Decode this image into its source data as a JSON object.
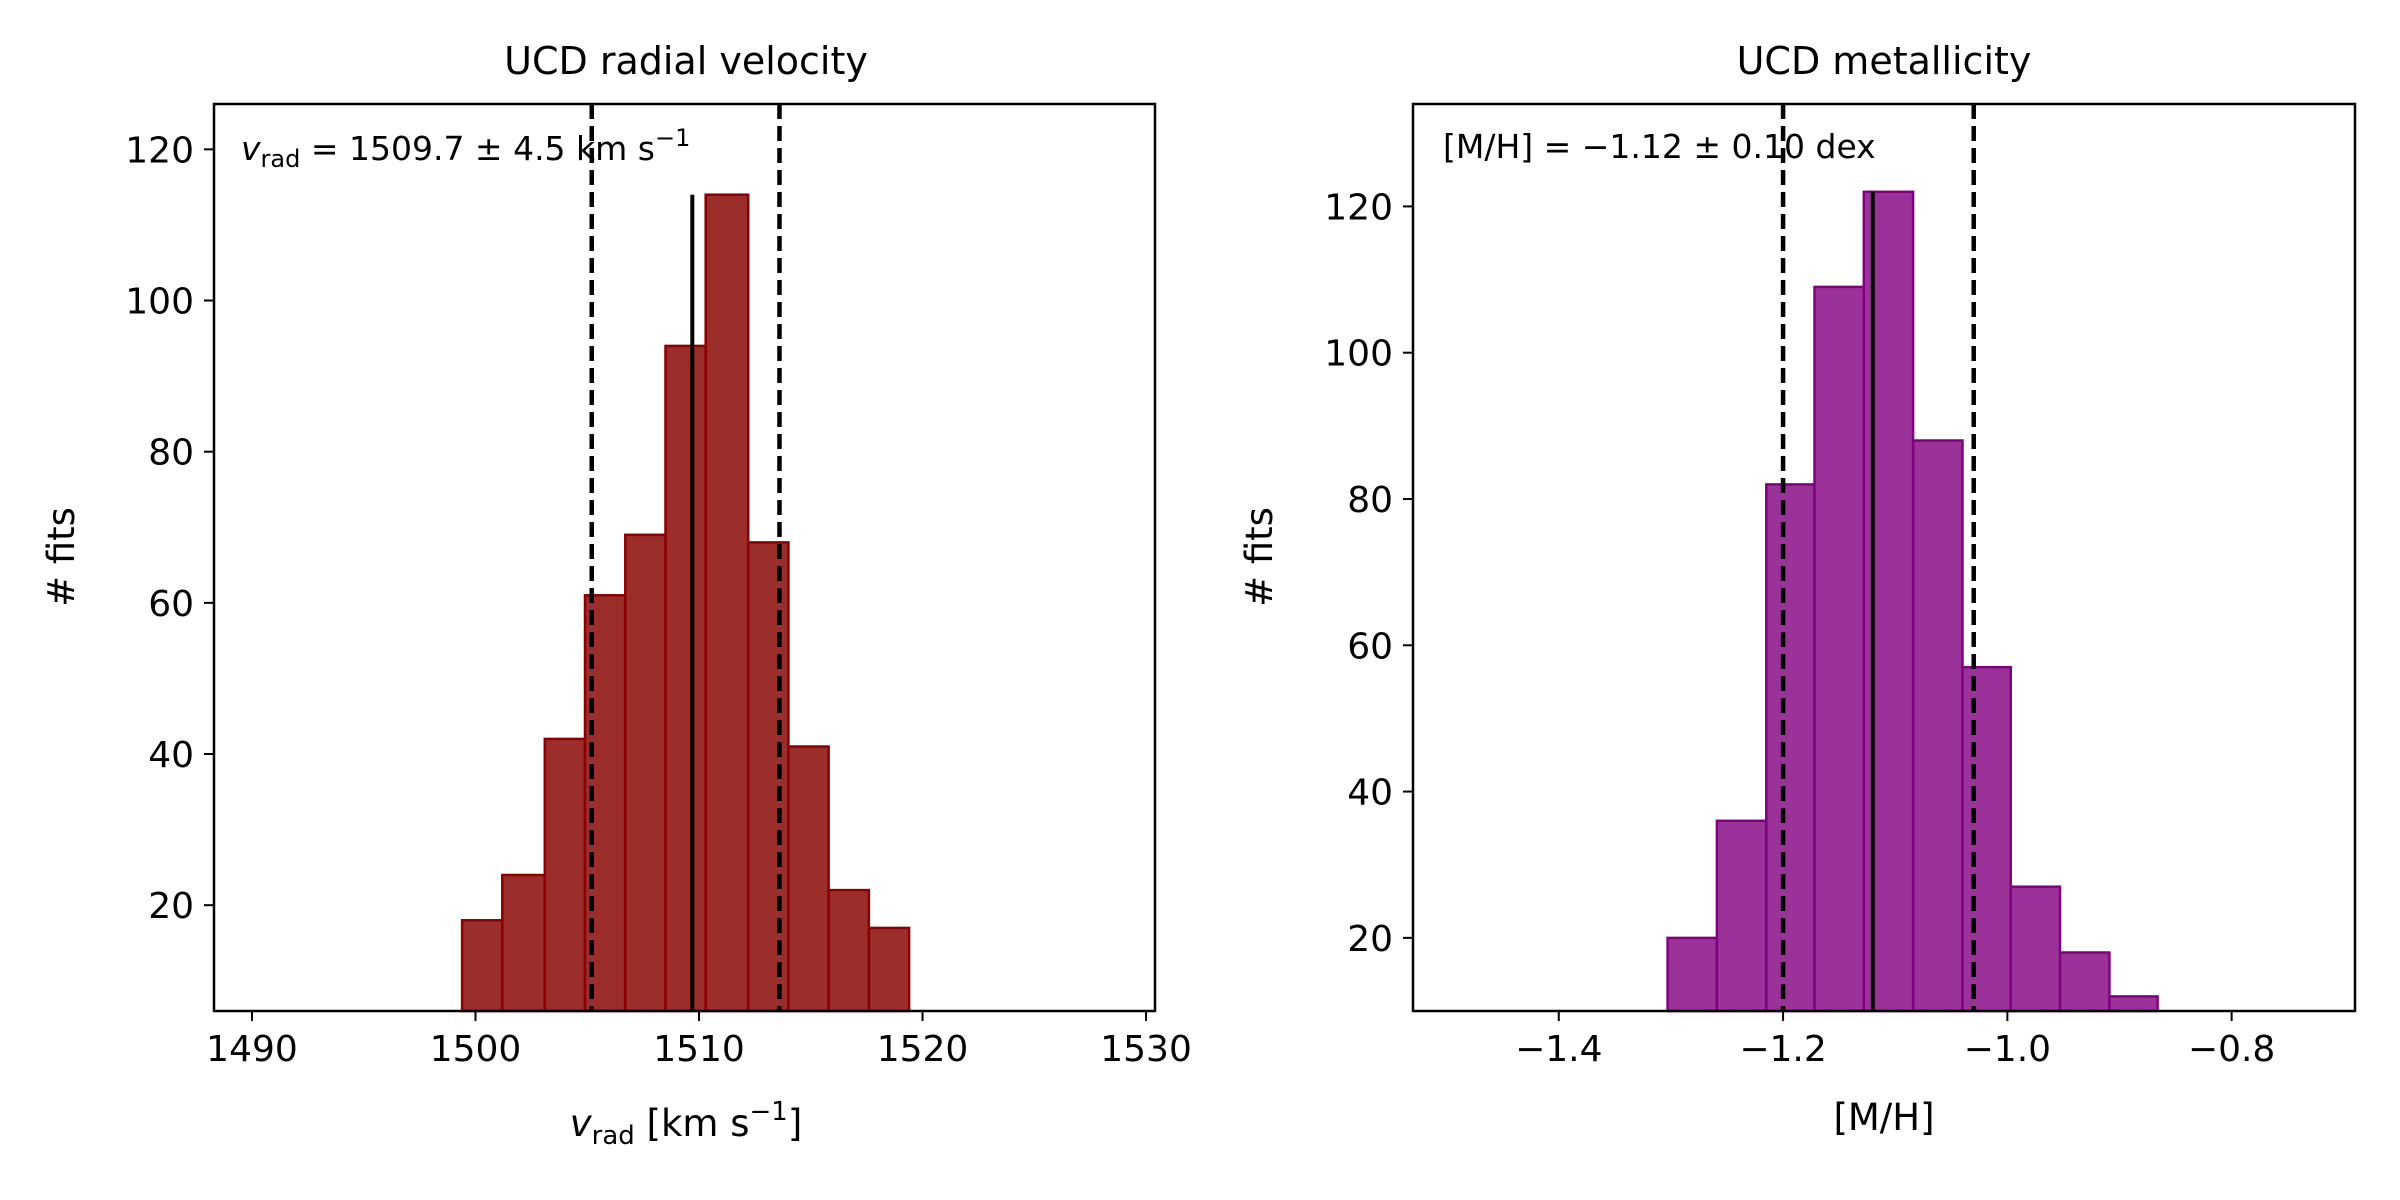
{
  "chart_data": [
    {
      "type": "histogram",
      "title": "UCD radial velocity",
      "xlabel": "v_rad [km s⁻¹]",
      "xlabel_parts": {
        "var": "v",
        "sub": "rad",
        "unit_open": " [km s",
        "sup": "−1",
        "unit_close": "]"
      },
      "ylabel": "# fits",
      "xlim": [
        1488.3,
        1530.4
      ],
      "ylim": [
        6,
        126
      ],
      "xticks": [
        1490,
        1500,
        1510,
        1520,
        1530
      ],
      "xtick_labels": [
        "1490",
        "1500",
        "1510",
        "1520",
        "1530"
      ],
      "yticks": [
        20,
        40,
        60,
        80,
        100,
        120
      ],
      "ytick_labels": [
        "20",
        "40",
        "60",
        "80",
        "100",
        "120"
      ],
      "bins": [
        {
          "x0": 1499.4,
          "x1": 1501.2,
          "count": 18
        },
        {
          "x0": 1501.2,
          "x1": 1503.1,
          "count": 24
        },
        {
          "x0": 1503.1,
          "x1": 1504.9,
          "count": 42
        },
        {
          "x0": 1504.9,
          "x1": 1506.7,
          "count": 61
        },
        {
          "x0": 1506.7,
          "x1": 1508.5,
          "count": 69
        },
        {
          "x0": 1508.5,
          "x1": 1510.3,
          "count": 94
        },
        {
          "x0": 1510.3,
          "x1": 1512.2,
          "count": 114
        },
        {
          "x0": 1512.2,
          "x1": 1514.0,
          "count": 68
        },
        {
          "x0": 1514.0,
          "x1": 1515.8,
          "count": 41
        },
        {
          "x0": 1515.8,
          "x1": 1517.6,
          "count": 22
        },
        {
          "x0": 1517.6,
          "x1": 1519.4,
          "count": 17
        }
      ],
      "median": 1509.7,
      "lower": 1505.2,
      "upper": 1513.6,
      "median_line_top": 114,
      "annotation": {
        "var": "v",
        "sub": "rad",
        "text": " = 1509.7 ± 4.5 km s",
        "sup": "−1"
      },
      "colors": {
        "fill": "#9b2d2a",
        "edge": "#8b0000"
      }
    },
    {
      "type": "histogram",
      "title": "UCD metallicity",
      "xlabel": "[M/H]",
      "ylabel": "# fits",
      "xlim": [
        -1.53,
        -0.69
      ],
      "ylim": [
        10,
        134
      ],
      "xticks": [
        -1.4,
        -1.2,
        -1.0,
        -0.8
      ],
      "xtick_labels": [
        "−1.4",
        "−1.2",
        "−1.0",
        "−0.8"
      ],
      "yticks": [
        20,
        40,
        60,
        80,
        100,
        120
      ],
      "ytick_labels": [
        "20",
        "40",
        "60",
        "80",
        "100",
        "120"
      ],
      "bins": [
        {
          "x0": -1.303,
          "x1": -1.259,
          "count": 20
        },
        {
          "x0": -1.259,
          "x1": -1.215,
          "count": 36
        },
        {
          "x0": -1.215,
          "x1": -1.172,
          "count": 82
        },
        {
          "x0": -1.172,
          "x1": -1.128,
          "count": 109
        },
        {
          "x0": -1.128,
          "x1": -1.084,
          "count": 122
        },
        {
          "x0": -1.084,
          "x1": -1.04,
          "count": 88
        },
        {
          "x0": -1.04,
          "x1": -0.997,
          "count": 57
        },
        {
          "x0": -0.997,
          "x1": -0.953,
          "count": 27
        },
        {
          "x0": -0.953,
          "x1": -0.909,
          "count": 18
        },
        {
          "x0": -0.909,
          "x1": -0.866,
          "count": 12
        }
      ],
      "median": -1.12,
      "lower": -1.2,
      "upper": -1.03,
      "median_line_top": 122,
      "annotation": {
        "text": "[M/H] = −1.12 ± 0.10 dex"
      },
      "colors": {
        "fill": "#9b3299",
        "edge": "#800080"
      }
    }
  ]
}
